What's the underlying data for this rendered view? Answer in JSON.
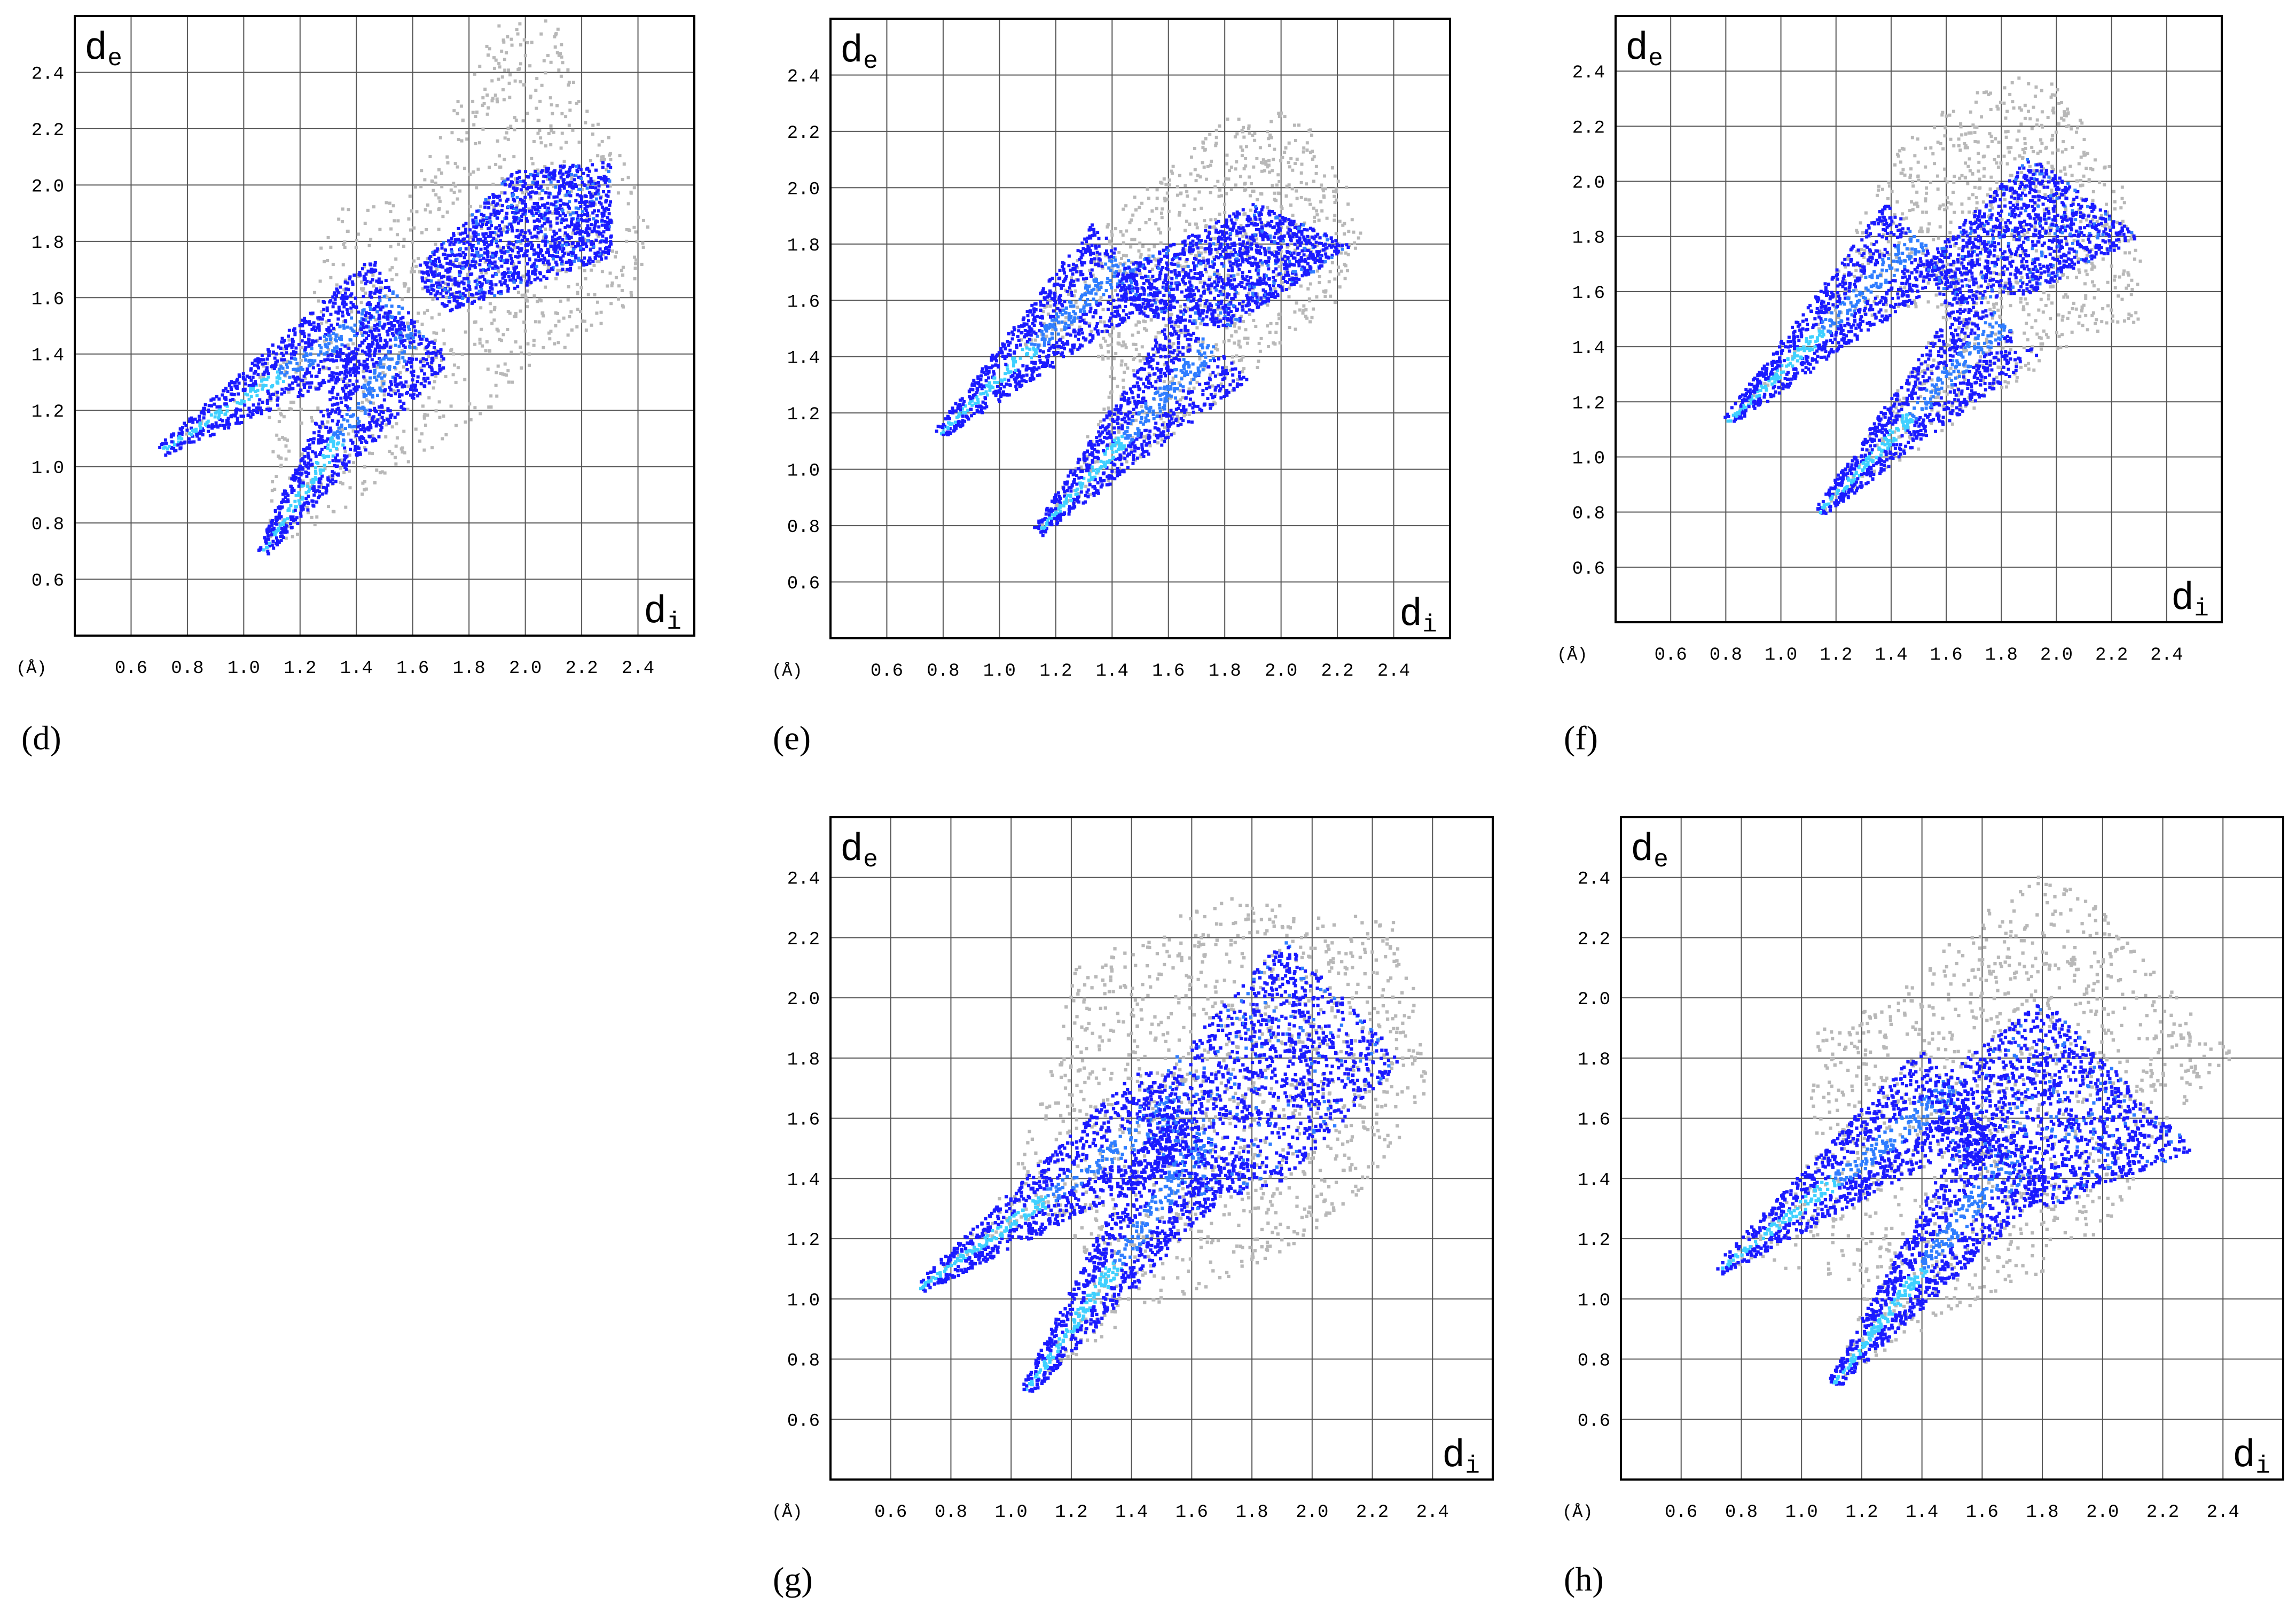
{
  "figure": {
    "panels": [
      {
        "id": "d",
        "caption": "(d)"
      },
      {
        "id": "e",
        "caption": "(e)"
      },
      {
        "id": "f",
        "caption": "(f)"
      },
      {
        "id": "g",
        "caption": "(g)"
      },
      {
        "id": "h",
        "caption": "(h)"
      }
    ]
  },
  "colors": {
    "background_points": "#b8b8b8",
    "low_density": "#1a1aff",
    "mid_density": "#2f7dff",
    "high_density": "#3fd0ff",
    "grid": "#555555",
    "frame": "#000000"
  },
  "chart_data": [
    {
      "panel": "d",
      "type": "scatter",
      "subtype": "hirshfeld-fingerprint-plot",
      "xlabel": "d",
      "xlabel_sub": "i",
      "ylabel": "d",
      "ylabel_sub": "e",
      "unit_label": "(Å)",
      "xlim": [
        0.4,
        2.6
      ],
      "ylim": [
        0.4,
        2.6
      ],
      "xticks": [
        "0.6",
        "0.8",
        "1.0",
        "1.2",
        "1.4",
        "1.6",
        "1.8",
        "2.0",
        "2.2",
        "2.4"
      ],
      "yticks": [
        "0.6",
        "0.8",
        "1.0",
        "1.2",
        "1.4",
        "1.6",
        "1.8",
        "2.0",
        "2.2",
        "2.4"
      ],
      "grid": true,
      "spikes": [
        {
          "tip": [
            0.7,
            1.06
          ],
          "end": [
            1.55,
            1.6
          ]
        },
        {
          "tip": [
            1.06,
            0.7
          ],
          "end": [
            1.6,
            1.5
          ]
        }
      ],
      "gray_hull": [
        [
          0.7,
          1.05
        ],
        [
          1.0,
          1.3
        ],
        [
          1.2,
          1.5
        ],
        [
          1.3,
          1.92
        ],
        [
          1.55,
          1.95
        ],
        [
          1.7,
          2.2
        ],
        [
          1.9,
          2.6
        ],
        [
          2.1,
          2.6
        ],
        [
          2.2,
          2.3
        ],
        [
          2.35,
          2.1
        ],
        [
          2.45,
          1.85
        ],
        [
          2.35,
          1.55
        ],
        [
          2.1,
          1.4
        ],
        [
          1.8,
          1.15
        ],
        [
          1.55,
          1.0
        ],
        [
          1.35,
          0.85
        ],
        [
          1.06,
          0.7
        ],
        [
          1.1,
          1.1
        ],
        [
          1.05,
          1.3
        ]
      ],
      "blue_region": [
        [
          1.7,
          1.55
        ],
        [
          2.3,
          1.75
        ],
        [
          2.3,
          2.1
        ],
        [
          1.95,
          2.05
        ],
        [
          1.6,
          1.7
        ]
      ]
    },
    {
      "panel": "e",
      "type": "scatter",
      "subtype": "hirshfeld-fingerprint-plot",
      "xlabel": "d",
      "xlabel_sub": "i",
      "ylabel": "d",
      "ylabel_sub": "e",
      "unit_label": "(Å)",
      "xlim": [
        0.4,
        2.6
      ],
      "ylim": [
        0.4,
        2.6
      ],
      "xticks": [
        "0.6",
        "0.8",
        "1.0",
        "1.2",
        "1.4",
        "1.6",
        "1.8",
        "2.0",
        "2.2",
        "2.4"
      ],
      "yticks": [
        "0.6",
        "0.8",
        "1.0",
        "1.2",
        "1.4",
        "1.6",
        "1.8",
        "2.0",
        "2.2",
        "2.4"
      ],
      "grid": true,
      "spikes": [
        {
          "tip": [
            0.78,
            1.13
          ],
          "end": [
            1.45,
            1.75
          ]
        },
        {
          "tip": [
            1.13,
            0.78
          ],
          "end": [
            1.75,
            1.45
          ]
        }
      ],
      "gray_hull": [
        [
          0.78,
          1.13
        ],
        [
          1.1,
          1.5
        ],
        [
          1.3,
          1.8
        ],
        [
          1.5,
          2.0
        ],
        [
          1.8,
          2.25
        ],
        [
          2.05,
          2.28
        ],
        [
          2.2,
          2.1
        ],
        [
          2.28,
          1.85
        ],
        [
          2.2,
          1.6
        ],
        [
          2.0,
          1.45
        ],
        [
          1.8,
          1.25
        ],
        [
          1.5,
          1.05
        ],
        [
          1.13,
          0.78
        ],
        [
          1.4,
          1.3
        ],
        [
          1.3,
          1.4
        ],
        [
          1.05,
          1.45
        ]
      ],
      "blue_region": [
        [
          1.4,
          1.7
        ],
        [
          1.9,
          1.95
        ],
        [
          2.25,
          1.8
        ],
        [
          1.8,
          1.5
        ],
        [
          1.5,
          1.55
        ]
      ]
    },
    {
      "panel": "f",
      "type": "scatter",
      "subtype": "hirshfeld-fingerprint-plot",
      "xlabel": "d",
      "xlabel_sub": "i",
      "ylabel": "d",
      "ylabel_sub": "e",
      "unit_label": "(Å)",
      "xlim": [
        0.4,
        2.6
      ],
      "ylim": [
        0.4,
        2.6
      ],
      "xticks": [
        "0.6",
        "0.8",
        "1.0",
        "1.2",
        "1.4",
        "1.6",
        "1.8",
        "2.0",
        "2.2",
        "2.4"
      ],
      "yticks": [
        "0.6",
        "0.8",
        "1.0",
        "1.2",
        "1.4",
        "1.6",
        "1.8",
        "2.0",
        "2.2",
        "2.4"
      ],
      "grid": true,
      "spikes": [
        {
          "tip": [
            0.8,
            1.13
          ],
          "end": [
            1.5,
            1.8
          ]
        },
        {
          "tip": [
            1.13,
            0.8
          ],
          "end": [
            1.8,
            1.5
          ]
        }
      ],
      "gray_hull": [
        [
          0.8,
          1.13
        ],
        [
          1.1,
          1.45
        ],
        [
          1.25,
          1.8
        ],
        [
          1.4,
          2.1
        ],
        [
          1.6,
          2.3
        ],
        [
          1.9,
          2.4
        ],
        [
          2.0,
          2.35
        ],
        [
          2.2,
          2.05
        ],
        [
          2.3,
          1.9
        ],
        [
          2.3,
          1.5
        ],
        [
          2.1,
          1.45
        ],
        [
          1.9,
          1.3
        ],
        [
          1.6,
          1.1
        ],
        [
          1.13,
          0.8
        ],
        [
          1.55,
          1.45
        ],
        [
          1.6,
          1.55
        ],
        [
          1.2,
          1.5
        ]
      ],
      "blue_region": [
        [
          1.5,
          1.7
        ],
        [
          1.9,
          2.1
        ],
        [
          2.3,
          1.8
        ],
        [
          1.9,
          1.6
        ],
        [
          1.6,
          1.55
        ]
      ]
    },
    {
      "panel": "g",
      "type": "scatter",
      "subtype": "hirshfeld-fingerprint-plot",
      "xlabel": "d",
      "xlabel_sub": "i",
      "ylabel": "d",
      "ylabel_sub": "e",
      "unit_label": "(Å)",
      "xlim": [
        0.4,
        2.6
      ],
      "ylim": [
        0.4,
        2.6
      ],
      "xticks": [
        "0.6",
        "0.8",
        "1.0",
        "1.2",
        "1.4",
        "1.6",
        "1.8",
        "2.0",
        "2.2",
        "2.4"
      ],
      "yticks": [
        "0.6",
        "0.8",
        "1.0",
        "1.2",
        "1.4",
        "1.6",
        "1.8",
        "2.0",
        "2.2",
        "2.4"
      ],
      "grid": true,
      "spikes": [
        {
          "tip": [
            0.69,
            1.04
          ],
          "end": [
            1.55,
            1.65
          ]
        },
        {
          "tip": [
            1.04,
            0.69
          ],
          "end": [
            1.65,
            1.55
          ]
        }
      ],
      "gray_hull": [
        [
          0.69,
          1.04
        ],
        [
          1.0,
          1.4
        ],
        [
          1.1,
          1.7
        ],
        [
          1.2,
          2.1
        ],
        [
          1.4,
          2.2
        ],
        [
          1.7,
          2.35
        ],
        [
          2.0,
          2.3
        ],
        [
          2.3,
          2.25
        ],
        [
          2.38,
          1.7
        ],
        [
          2.2,
          1.4
        ],
        [
          2.0,
          1.2
        ],
        [
          1.8,
          1.1
        ],
        [
          1.4,
          0.95
        ],
        [
          1.04,
          0.69
        ],
        [
          1.3,
          1.1
        ],
        [
          1.1,
          1.3
        ],
        [
          0.95,
          1.2
        ]
      ],
      "blue_region": [
        [
          1.4,
          1.65
        ],
        [
          1.9,
          2.2
        ],
        [
          2.3,
          1.8
        ],
        [
          1.9,
          1.4
        ],
        [
          1.6,
          1.3
        ]
      ]
    },
    {
      "panel": "h",
      "type": "scatter",
      "subtype": "hirshfeld-fingerprint-plot",
      "xlabel": "d",
      "xlabel_sub": "i",
      "ylabel": "d",
      "ylabel_sub": "e",
      "unit_label": "(Å)",
      "xlim": [
        0.4,
        2.6
      ],
      "ylim": [
        0.4,
        2.6
      ],
      "xticks": [
        "0.6",
        "0.8",
        "1.0",
        "1.2",
        "1.4",
        "1.6",
        "1.8",
        "2.0",
        "2.2",
        "2.4"
      ],
      "yticks": [
        "0.6",
        "0.8",
        "1.0",
        "1.2",
        "1.4",
        "1.6",
        "1.8",
        "2.0",
        "2.2",
        "2.4"
      ],
      "grid": true,
      "spikes": [
        {
          "tip": [
            0.72,
            1.1
          ],
          "end": [
            1.5,
            1.7
          ]
        },
        {
          "tip": [
            1.1,
            0.72
          ],
          "end": [
            1.7,
            1.5
          ]
        }
      ],
      "gray_hull": [
        [
          0.7,
          1.1
        ],
        [
          1.0,
          1.4
        ],
        [
          1.05,
          1.9
        ],
        [
          1.3,
          2.0
        ],
        [
          1.6,
          2.3
        ],
        [
          1.8,
          2.42
        ],
        [
          2.0,
          2.3
        ],
        [
          2.2,
          2.05
        ],
        [
          2.45,
          1.8
        ],
        [
          2.2,
          1.6
        ],
        [
          2.0,
          1.2
        ],
        [
          1.7,
          1.05
        ],
        [
          1.3,
          0.85
        ],
        [
          1.1,
          0.72
        ],
        [
          1.2,
          1.0
        ],
        [
          1.05,
          1.1
        ]
      ],
      "blue_region": [
        [
          1.4,
          1.7
        ],
        [
          1.8,
          2.0
        ],
        [
          2.3,
          1.5
        ],
        [
          1.8,
          1.3
        ],
        [
          1.5,
          1.45
        ]
      ]
    }
  ]
}
